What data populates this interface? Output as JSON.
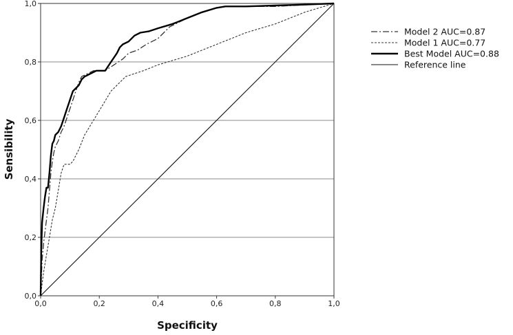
{
  "chart_data": {
    "type": "line",
    "xlabel": "Specificity",
    "ylabel": "Sensibility",
    "xlim": [
      0,
      1
    ],
    "ylim": [
      0,
      1
    ],
    "x_ticks": [
      "0,0",
      "0,2",
      "0,4",
      "0,6",
      "0,8",
      "1,0"
    ],
    "y_ticks": [
      "0,0",
      "0,2",
      "0,4",
      "0,6",
      "0,8",
      "1,0"
    ],
    "grid": "horizontal",
    "legend_position": "right",
    "series": [
      {
        "name": "Model 2 AUC=0.87",
        "style": "dash-dot",
        "x": [
          0,
          0.005,
          0.01,
          0.015,
          0.02,
          0.025,
          0.03,
          0.035,
          0.04,
          0.045,
          0.05,
          0.06,
          0.07,
          0.08,
          0.09,
          0.1,
          0.11,
          0.12,
          0.13,
          0.14,
          0.16,
          0.18,
          0.2,
          0.22,
          0.25,
          0.28,
          0.3,
          0.33,
          0.36,
          0.4,
          0.42,
          0.44,
          0.46,
          0.5,
          0.55,
          0.6,
          0.63,
          0.7,
          0.8,
          0.9,
          1.0
        ],
        "y": [
          0,
          0.12,
          0.18,
          0.22,
          0.26,
          0.3,
          0.36,
          0.42,
          0.46,
          0.49,
          0.51,
          0.53,
          0.56,
          0.58,
          0.61,
          0.64,
          0.67,
          0.7,
          0.73,
          0.75,
          0.76,
          0.77,
          0.77,
          0.77,
          0.79,
          0.81,
          0.83,
          0.84,
          0.86,
          0.88,
          0.9,
          0.92,
          0.93,
          0.95,
          0.97,
          0.985,
          0.99,
          0.99,
          0.99,
          0.995,
          1.0
        ]
      },
      {
        "name": "Model 1 AUC=0.77",
        "style": "dashed",
        "x": [
          0,
          0.005,
          0.01,
          0.02,
          0.03,
          0.04,
          0.05,
          0.06,
          0.07,
          0.08,
          0.1,
          0.11,
          0.13,
          0.15,
          0.18,
          0.21,
          0.24,
          0.27,
          0.29,
          0.35,
          0.4,
          0.5,
          0.6,
          0.7,
          0.8,
          0.9,
          1.0
        ],
        "y": [
          0,
          0.04,
          0.08,
          0.14,
          0.2,
          0.26,
          0.3,
          0.36,
          0.42,
          0.45,
          0.45,
          0.46,
          0.5,
          0.55,
          0.6,
          0.65,
          0.7,
          0.73,
          0.75,
          0.77,
          0.79,
          0.82,
          0.86,
          0.9,
          0.93,
          0.97,
          1.0
        ]
      },
      {
        "name": "Best Model AUC=0.88",
        "style": "solid-bold",
        "x": [
          0,
          0.002,
          0.005,
          0.01,
          0.015,
          0.02,
          0.025,
          0.03,
          0.035,
          0.04,
          0.045,
          0.05,
          0.06,
          0.07,
          0.08,
          0.09,
          0.1,
          0.11,
          0.12,
          0.13,
          0.14,
          0.15,
          0.17,
          0.19,
          0.22,
          0.24,
          0.26,
          0.27,
          0.28,
          0.3,
          0.32,
          0.34,
          0.37,
          0.4,
          0.45,
          0.5,
          0.55,
          0.6,
          0.63,
          0.7,
          0.8,
          0.9,
          1.0
        ],
        "y": [
          0,
          0.15,
          0.25,
          0.3,
          0.34,
          0.37,
          0.37,
          0.42,
          0.48,
          0.52,
          0.53,
          0.55,
          0.56,
          0.58,
          0.61,
          0.64,
          0.67,
          0.7,
          0.71,
          0.72,
          0.74,
          0.75,
          0.76,
          0.77,
          0.77,
          0.8,
          0.83,
          0.85,
          0.86,
          0.87,
          0.89,
          0.9,
          0.905,
          0.915,
          0.93,
          0.95,
          0.97,
          0.985,
          0.99,
          0.99,
          0.993,
          0.996,
          1.0
        ]
      },
      {
        "name": "Reference line",
        "style": "solid-thin",
        "x": [
          0,
          1
        ],
        "y": [
          0,
          1
        ]
      }
    ]
  }
}
